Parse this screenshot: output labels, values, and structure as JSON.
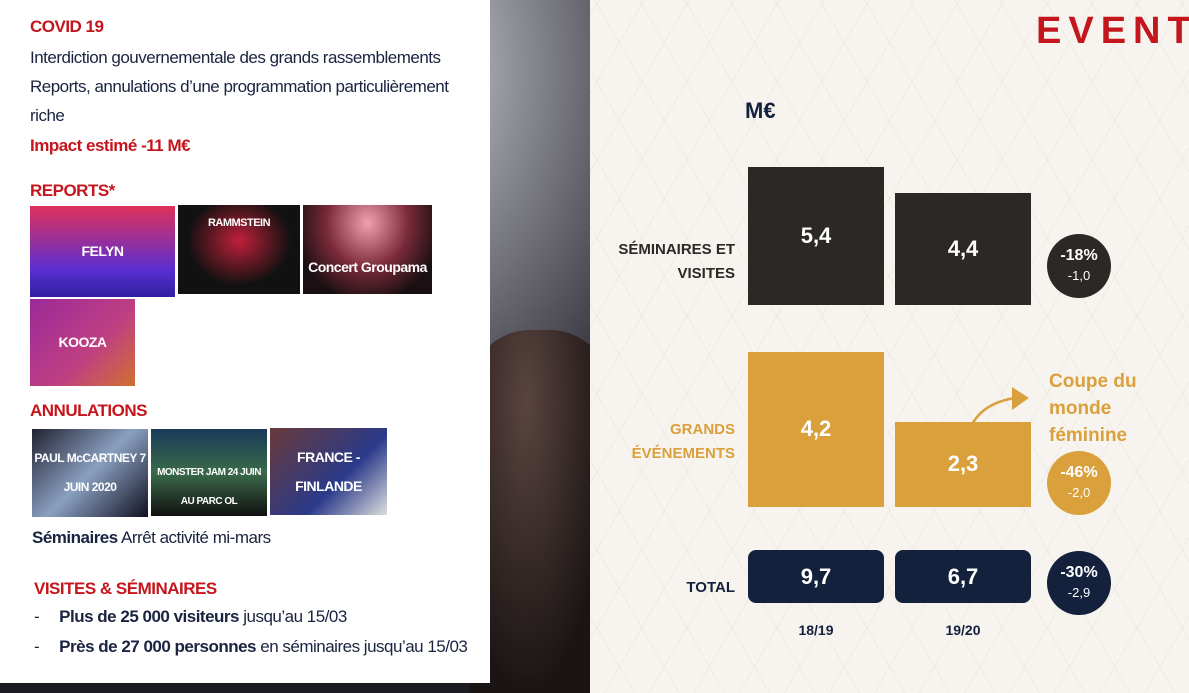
{
  "left": {
    "covid_title": "COVID 19",
    "covid_lines": [
      "Interdiction gouvernementale des grands rassemblements",
      "Reports, annulations d’une programmation particulièrement riche"
    ],
    "impact": "Impact estimé -11 M€",
    "reports_title": "REPORTS*",
    "reports": [
      "FELYN",
      "RAMMSTEIN",
      "Concert Groupama",
      "KOOZA"
    ],
    "annulations_title": "ANNULATIONS",
    "annulations": [
      "PAUL McCARTNEY 7 JUIN 2020",
      "MONSTER JAM 24 JUIN AU PARC OL",
      "FRANCE - FINLANDE"
    ],
    "seminaires_bold": "Séminaires",
    "seminaires_text": "Arrêt activité mi-mars",
    "visites_title": "VISITES & SÉMINAIRES",
    "bullets": [
      {
        "bold": "Plus de 25 000 visiteurs",
        "text": "jusqu’au 15/03"
      },
      {
        "bold": "Près de 27 000 personnes",
        "text": "en séminaires jusqu’au 15/03"
      }
    ],
    "bullet_marker": "-"
  },
  "header": {
    "title": "EVENTS"
  },
  "annotation": "Coupe du monde féminine",
  "colors": {
    "red": "#c4161c",
    "navy": "#14213d",
    "dark": "#2b2826",
    "gold": "#d9a03b"
  },
  "chart_data": {
    "type": "bar",
    "unit": "M€",
    "categories": [
      "18/19",
      "19/20"
    ],
    "series": [
      {
        "name": "SÉMINAIRES ET VISITES",
        "values": [
          5.4,
          4.4
        ],
        "labels": [
          "5,4",
          "4,4"
        ],
        "change_pct": "-18%",
        "change_abs": "-1,0",
        "color": "#2b2826"
      },
      {
        "name": "GRANDS ÉVÉNEMENTS",
        "values": [
          4.2,
          2.3
        ],
        "labels": [
          "4,2",
          "2,3"
        ],
        "change_pct": "-46%",
        "change_abs": "-2,0",
        "color": "#d9a03b"
      },
      {
        "name": "TOTAL",
        "values": [
          9.7,
          6.7
        ],
        "labels": [
          "9,7",
          "6,7"
        ],
        "change_pct": "-30%",
        "change_abs": "-2,9",
        "color": "#14213d"
      }
    ]
  }
}
